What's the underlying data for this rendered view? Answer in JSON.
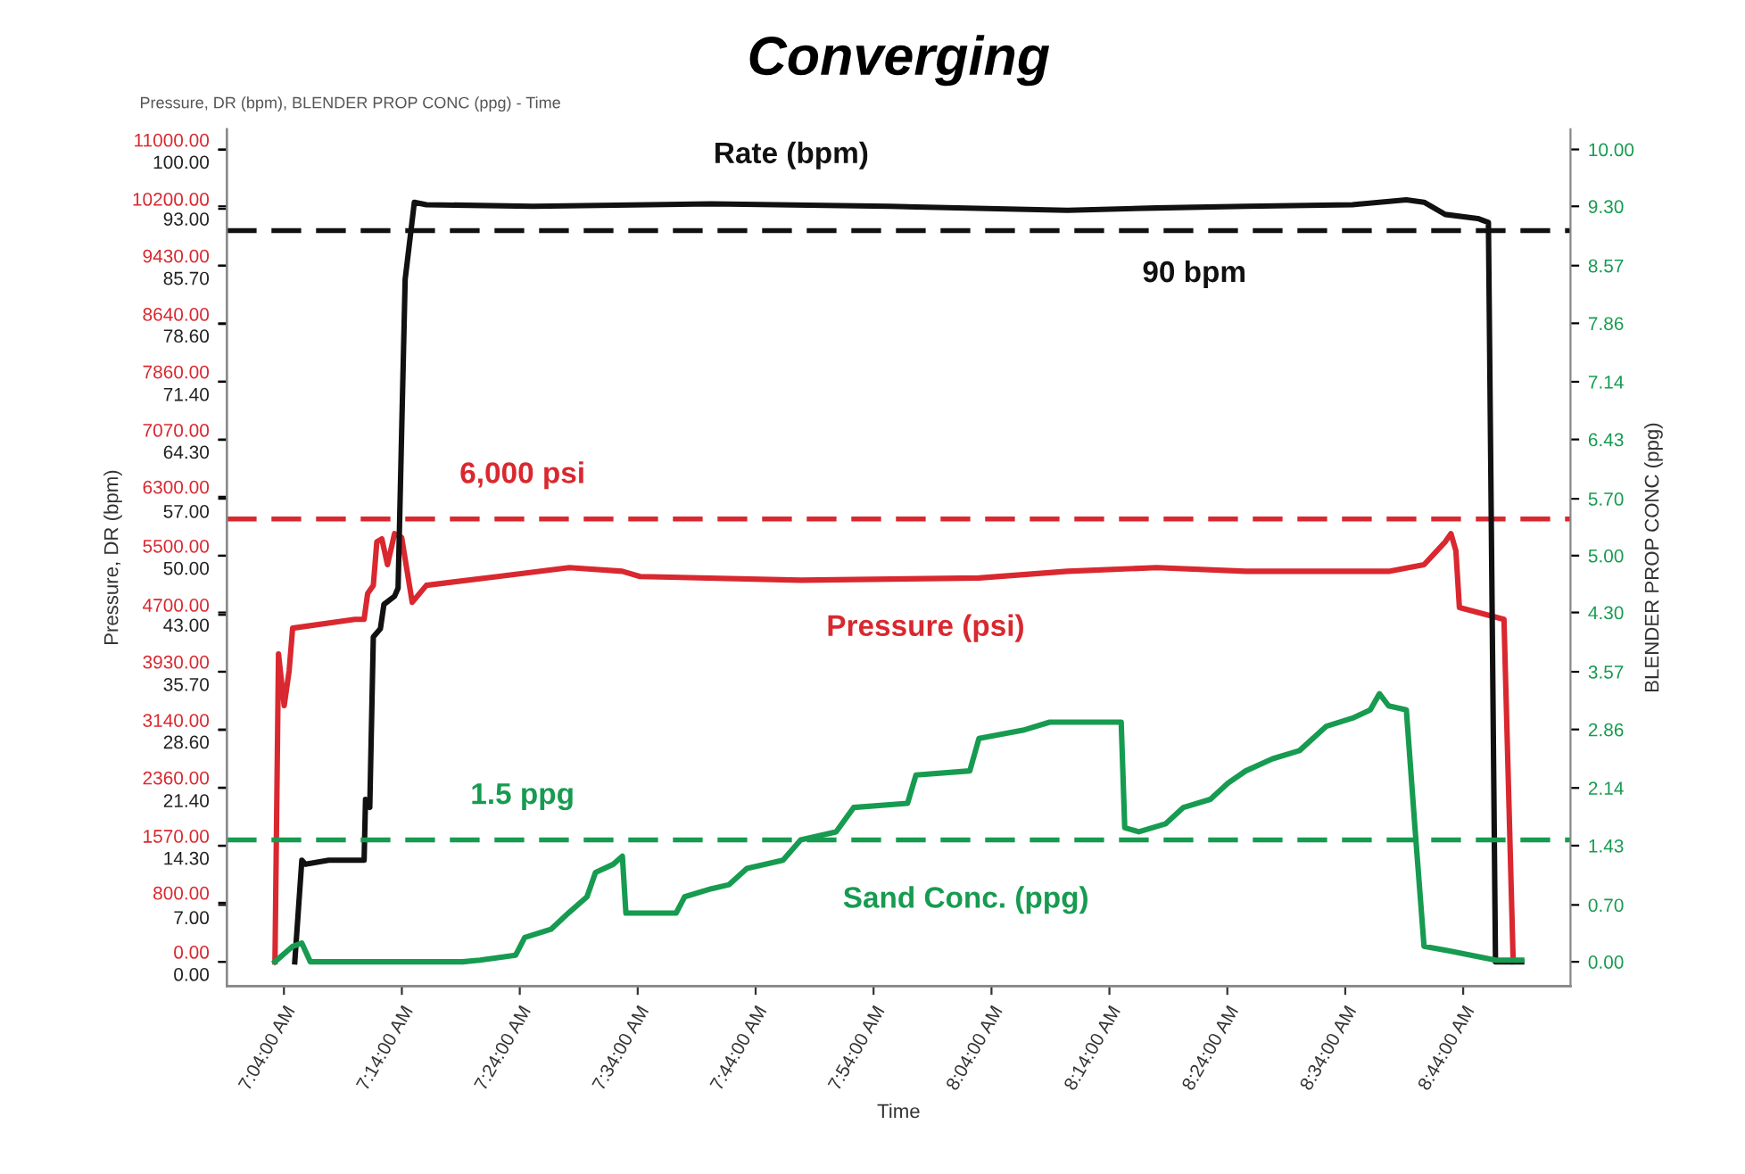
{
  "chart_data": {
    "type": "line",
    "title": "Converging",
    "xlabel": "Time",
    "ylabel": "Pressure, DR (bpm)",
    "y2label": "BLENDER PROP CONC (ppg)",
    "annotations": [
      "Pressure, DR (bpm), BLENDER PROP CONC (ppg) - Time"
    ],
    "xlim": [
      6.986,
      8.885
    ],
    "xticks": [
      {
        "value": 7.0666667,
        "label": "7:04:00 AM"
      },
      {
        "value": 7.2333333,
        "label": "7:14:00 AM"
      },
      {
        "value": 7.4,
        "label": "7:24:00 AM"
      },
      {
        "value": 7.5666667,
        "label": "7:34:00 AM"
      },
      {
        "value": 7.7333333,
        "label": "7:44:00 AM"
      },
      {
        "value": 7.9,
        "label": "7:54:00 AM"
      },
      {
        "value": 8.0666667,
        "label": "8:04:00 AM"
      },
      {
        "value": 8.2333333,
        "label": "8:14:00 AM"
      },
      {
        "value": 8.4,
        "label": "8:24:00 AM"
      },
      {
        "value": 8.5666667,
        "label": "8:34:00 AM"
      },
      {
        "value": 8.7333333,
        "label": "8:44:00 AM"
      }
    ],
    "ylim": [
      -330,
      11280
    ],
    "yticks": [
      {
        "value": 0,
        "label": "0.00"
      },
      {
        "value": 800,
        "label": "800.00"
      },
      {
        "value": 1570,
        "label": "1570.00"
      },
      {
        "value": 2360,
        "label": "2360.00"
      },
      {
        "value": 3140,
        "label": "3140.00"
      },
      {
        "value": 3930,
        "label": "3930.00"
      },
      {
        "value": 4700,
        "label": "4700.00"
      },
      {
        "value": 5500,
        "label": "5500.00"
      },
      {
        "value": 6300,
        "label": "6300.00"
      },
      {
        "value": 7070,
        "label": "7070.00"
      },
      {
        "value": 7860,
        "label": "7860.00"
      },
      {
        "value": 8640,
        "label": "8640.00"
      },
      {
        "value": 9430,
        "label": "9430.00"
      },
      {
        "value": 10200,
        "label": "10200.00"
      },
      {
        "value": 11000,
        "label": "11000.00"
      }
    ],
    "y3lim": [
      -3,
      102.5
    ],
    "y3ticks": [
      {
        "value": 0,
        "label": "0.00"
      },
      {
        "value": 7,
        "label": "7.00"
      },
      {
        "value": 14.3,
        "label": "14.30"
      },
      {
        "value": 21.4,
        "label": "21.40"
      },
      {
        "value": 28.6,
        "label": "28.60"
      },
      {
        "value": 35.7,
        "label": "35.70"
      },
      {
        "value": 43,
        "label": "43.00"
      },
      {
        "value": 50,
        "label": "50.00"
      },
      {
        "value": 57,
        "label": "57.00"
      },
      {
        "value": 64.3,
        "label": "64.30"
      },
      {
        "value": 71.4,
        "label": "71.40"
      },
      {
        "value": 78.6,
        "label": "78.60"
      },
      {
        "value": 85.7,
        "label": "85.70"
      },
      {
        "value": 93,
        "label": "93.00"
      },
      {
        "value": 100,
        "label": "100.00"
      }
    ],
    "y2lim": [
      -0.3,
      10.25
    ],
    "y2ticks": [
      {
        "value": 0,
        "label": "0.00"
      },
      {
        "value": 0.7,
        "label": "0.70"
      },
      {
        "value": 1.43,
        "label": "1.43"
      },
      {
        "value": 2.14,
        "label": "2.14"
      },
      {
        "value": 2.86,
        "label": "2.86"
      },
      {
        "value": 3.57,
        "label": "3.57"
      },
      {
        "value": 4.3,
        "label": "4.30"
      },
      {
        "value": 5,
        "label": "5.00"
      },
      {
        "value": 5.7,
        "label": "5.70"
      },
      {
        "value": 6.43,
        "label": "6.43"
      },
      {
        "value": 7.14,
        "label": "7.14"
      },
      {
        "value": 7.86,
        "label": "7.86"
      },
      {
        "value": 8.57,
        "label": "8.57"
      },
      {
        "value": 9.3,
        "label": "9.30"
      },
      {
        "value": 10,
        "label": "10.00"
      }
    ],
    "grid": false,
    "legend": false,
    "marker": "none",
    "line_style": "solid",
    "ref_lines": [
      {
        "axis": "y3",
        "value": 90,
        "label": "90 bpm",
        "color": "#111111",
        "line_style": "dashed"
      },
      {
        "axis": "y",
        "value": 6000,
        "label": "6,000 psi",
        "color": "#d9282f",
        "line_style": "dashed"
      },
      {
        "axis": "y2",
        "value": 1.5,
        "label": "1.5 ppg",
        "color": "#169b50",
        "line_style": "dashed"
      }
    ],
    "series": [
      {
        "name": "Pressure (psi)",
        "axis": "y",
        "color": "#d9282f",
        "x": [
          7.054,
          7.059,
          7.067,
          7.074,
          7.079,
          7.167,
          7.18,
          7.185,
          7.193,
          7.198,
          7.205,
          7.213,
          7.223,
          7.233,
          7.248,
          7.268,
          7.369,
          7.47,
          7.545,
          7.57,
          7.797,
          8.049,
          8.174,
          8.3,
          8.426,
          8.628,
          8.678,
          8.708,
          8.716,
          8.723,
          8.728,
          8.791,
          8.804
        ],
        "values": [
          0,
          4170,
          3470,
          3940,
          4520,
          4640,
          4640,
          4990,
          5100,
          5690,
          5730,
          5380,
          5800,
          5750,
          4870,
          5100,
          5220,
          5340,
          5290,
          5220,
          5170,
          5200,
          5290,
          5340,
          5290,
          5290,
          5380,
          5690,
          5800,
          5570,
          4800,
          4640,
          0
        ]
      },
      {
        "name": "Rate (bpm)",
        "axis": "y3",
        "color": "#111111",
        "x": [
          7.082,
          7.092,
          7.097,
          7.13,
          7.18,
          7.182,
          7.188,
          7.193,
          7.203,
          7.208,
          7.223,
          7.228,
          7.238,
          7.251,
          7.268,
          7.419,
          7.671,
          7.923,
          8.174,
          8.3,
          8.426,
          8.577,
          8.653,
          8.678,
          8.708,
          8.754,
          8.769,
          8.779,
          8.816
        ],
        "values": [
          0,
          12.5,
          12.0,
          12.5,
          12.5,
          20,
          19,
          40,
          41,
          44,
          45,
          46,
          84,
          93.5,
          93.2,
          93.0,
          93.3,
          93.0,
          92.5,
          92.8,
          93.0,
          93.2,
          93.8,
          93.5,
          92,
          91.5,
          91,
          0,
          0
        ]
      },
      {
        "name": "Sand Conc. (ppg)",
        "axis": "y2",
        "color": "#169b50",
        "x": [
          7.054,
          7.079,
          7.092,
          7.104,
          7.319,
          7.344,
          7.394,
          7.407,
          7.444,
          7.47,
          7.495,
          7.507,
          7.532,
          7.545,
          7.55,
          7.621,
          7.633,
          7.671,
          7.696,
          7.721,
          7.772,
          7.797,
          7.847,
          7.872,
          7.948,
          7.96,
          8.036,
          8.049,
          8.111,
          8.149,
          8.25,
          8.255,
          8.275,
          8.313,
          8.338,
          8.376,
          8.401,
          8.426,
          8.464,
          8.502,
          8.54,
          8.577,
          8.602,
          8.615,
          8.628,
          8.653,
          8.665,
          8.678,
          8.716,
          8.779,
          8.816
        ],
        "values": [
          0,
          0.19,
          0.23,
          0,
          0,
          0.02,
          0.08,
          0.3,
          0.4,
          0.61,
          0.8,
          1.1,
          1.2,
          1.3,
          0.6,
          0.6,
          0.8,
          0.9,
          0.95,
          1.15,
          1.25,
          1.5,
          1.6,
          1.9,
          1.95,
          2.3,
          2.35,
          2.75,
          2.85,
          2.95,
          2.95,
          1.65,
          1.6,
          1.7,
          1.9,
          2.0,
          2.2,
          2.35,
          2.5,
          2.6,
          2.9,
          3.0,
          3.1,
          3.3,
          3.15,
          3.1,
          1.67,
          0.19,
          0.13,
          0.02,
          0.02
        ]
      }
    ]
  }
}
